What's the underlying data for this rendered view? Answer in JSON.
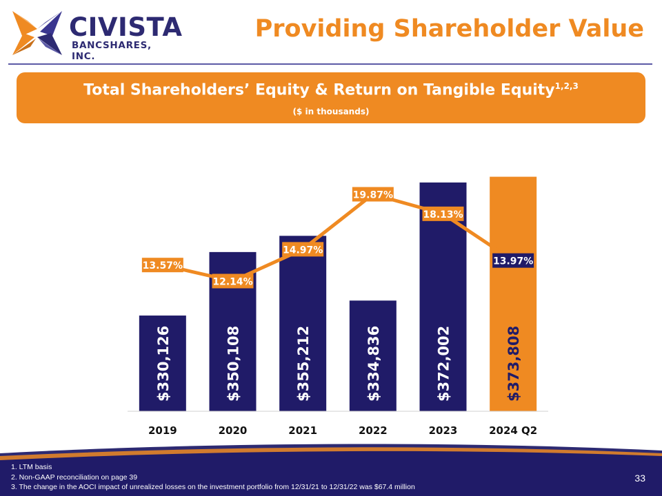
{
  "logo": {
    "name": "CIVISTA",
    "subtitle": "BANCSHARES, INC."
  },
  "slide_title": "Providing Shareholder Value",
  "banner": {
    "title": "Total Shareholders’ Equity & Return on Tangible Equity",
    "title_superscript": "1,2,3",
    "subtitle": "($ in thousands)"
  },
  "colors": {
    "navy": "#201b68",
    "orange": "#ef8a22",
    "white": "#ffffff"
  },
  "chart_data": {
    "type": "bar",
    "title": "Total Shareholders’ Equity & Return on Tangible Equity",
    "subtitle": "($ in thousands)",
    "categories": [
      "2019",
      "2020",
      "2021",
      "2022",
      "2023",
      "2024 Q2"
    ],
    "series": [
      {
        "name": "Total Shareholders’ Equity",
        "type": "bar",
        "values": [
          330126,
          350108,
          355212,
          334836,
          372002,
          373808
        ],
        "labels": [
          "$330,126",
          "$350,108",
          "$355,212",
          "$334,836",
          "$372,002",
          "$373,808"
        ],
        "highlight_index": 5
      },
      {
        "name": "Return on Tangible Equity",
        "type": "line",
        "values": [
          13.57,
          12.14,
          14.97,
          19.87,
          18.13,
          13.97
        ],
        "labels": [
          "13.57%",
          "12.14%",
          "14.97%",
          "19.87%",
          "18.13%",
          "13.97%"
        ]
      }
    ],
    "ylim_bar": [
      300000,
      380000
    ],
    "ylim_line": [
      0,
      25
    ],
    "grid": false,
    "legend": "none"
  },
  "footnotes": [
    "1. LTM basis",
    "2. Non-GAAP reconciliation on page 39",
    "3. The change in the AOCI impact of unrealized losses on the investment portfolio from 12/31/21 to 12/31/22 was $67.4 million"
  ],
  "page_number": "33"
}
